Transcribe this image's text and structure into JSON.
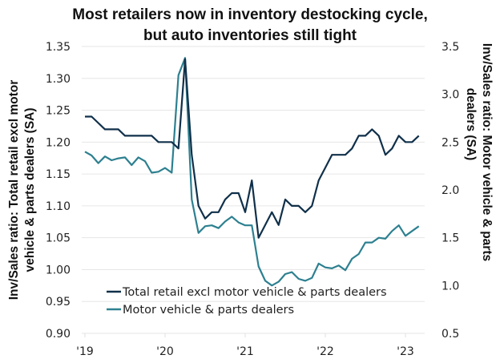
{
  "chart_data": {
    "type": "line",
    "title_lines": [
      "Most retailers now in inventory destocking cycle,",
      "but auto inventories still tight"
    ],
    "xlabel": "",
    "x_tick_labels": [
      "'19",
      "'20",
      "'21",
      "'22",
      "'23"
    ],
    "x_start": "2019-01",
    "x_frequency": "monthly",
    "ylabel_left_lines": [
      "Inv/Sales ratio: Total retail excl motor",
      "vehicle & parts dealers (SA)"
    ],
    "ylabel_right_lines": [
      "Inv/Sales ratio: Motor vehicle & parts",
      "dealers (SA)"
    ],
    "ylim_left": [
      0.9,
      1.35
    ],
    "ylim_right": [
      0.5,
      3.5
    ],
    "y_ticks_left": [
      "1.35",
      "1.30",
      "1.25",
      "1.20",
      "1.15",
      "1.10",
      "1.05",
      "1.00",
      "0.95",
      "0.90"
    ],
    "y_ticks_right": [
      "3.5",
      "3.0",
      "2.5",
      "2.0",
      "1.5",
      "1.0",
      "0.5"
    ],
    "grid": true,
    "legend_position": "bottom-left",
    "series": [
      {
        "name": "Total retail excl motor vehicle & parts dealers",
        "axis": "left",
        "color": "#10304a",
        "values": [
          1.24,
          1.24,
          1.23,
          1.22,
          1.22,
          1.22,
          1.21,
          1.21,
          1.21,
          1.21,
          1.21,
          1.2,
          1.2,
          1.2,
          1.19,
          1.33,
          1.18,
          1.1,
          1.08,
          1.09,
          1.09,
          1.11,
          1.12,
          1.12,
          1.09,
          1.14,
          1.05,
          1.07,
          1.09,
          1.07,
          1.11,
          1.1,
          1.1,
          1.09,
          1.1,
          1.14,
          1.16,
          1.18,
          1.18,
          1.18,
          1.19,
          1.21,
          1.21,
          1.22,
          1.21,
          1.18,
          1.19,
          1.21,
          1.2,
          1.2,
          1.21
        ]
      },
      {
        "name": "Motor vehicle & parts dealers",
        "axis": "right",
        "color": "#2d8090",
        "values": [
          2.4,
          2.36,
          2.28,
          2.35,
          2.31,
          2.33,
          2.34,
          2.26,
          2.34,
          2.3,
          2.18,
          2.19,
          2.23,
          2.18,
          3.2,
          3.38,
          1.9,
          1.55,
          1.62,
          1.63,
          1.6,
          1.67,
          1.72,
          1.66,
          1.63,
          1.63,
          1.2,
          1.05,
          1.0,
          1.04,
          1.12,
          1.14,
          1.07,
          1.05,
          1.08,
          1.23,
          1.19,
          1.18,
          1.21,
          1.16,
          1.28,
          1.33,
          1.45,
          1.45,
          1.5,
          1.49,
          1.57,
          1.63,
          1.52,
          1.57,
          1.62
        ]
      }
    ]
  }
}
